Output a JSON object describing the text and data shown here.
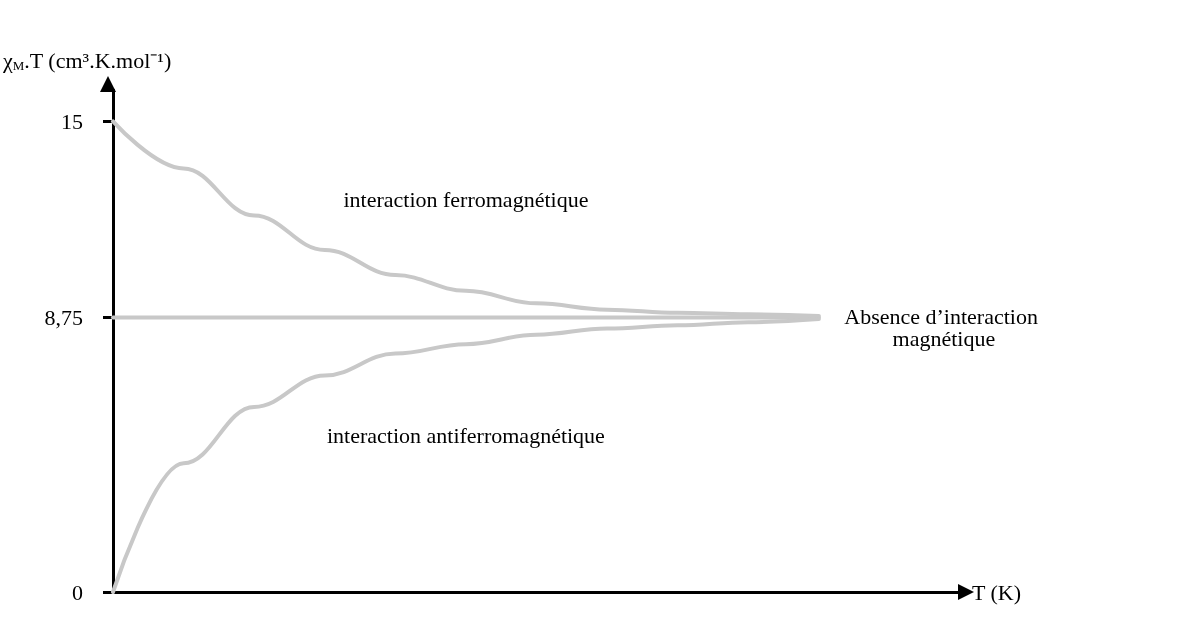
{
  "chart_data": {
    "type": "line",
    "ylabel": "χ$_{M}$.T (cm³.K.mol⁻¹)",
    "xlabel": "T (K)",
    "categories": [
      null,
      null,
      null,
      null,
      null,
      null,
      null,
      null,
      null,
      null,
      null,
      null,
      null
    ],
    "series": [
      {
        "name": "interaction ferromagnétique",
        "color": "#c8c8c8",
        "values": [
          15,
          13.5,
          12,
          10.9,
          10.1,
          9.6,
          9.2,
          9.0,
          8.9,
          8.85,
          8.8,
          null,
          null
        ]
      },
      {
        "name": "Absence d’interaction magnétique",
        "color": "#c8c8c8",
        "values": [
          8.75,
          8.75,
          8.75,
          8.75,
          8.75,
          8.75,
          8.75,
          8.75,
          8.75,
          8.75,
          8.75,
          null,
          null
        ]
      },
      {
        "name": "interaction antiferromagnétique",
        "color": "#c8c8c8",
        "values": [
          0,
          4.1,
          5.9,
          6.9,
          7.6,
          7.9,
          8.2,
          8.4,
          8.5,
          8.6,
          8.7,
          null,
          null
        ]
      }
    ],
    "ylim": [
      0,
      16
    ],
    "yticks": [
      0,
      {
        "value": 8.75,
        "label": "8,75"
      },
      15
    ],
    "tick_labels": "y",
    "grid": false,
    "legend": false,
    "marker": "none",
    "line_style": "solid"
  }
}
